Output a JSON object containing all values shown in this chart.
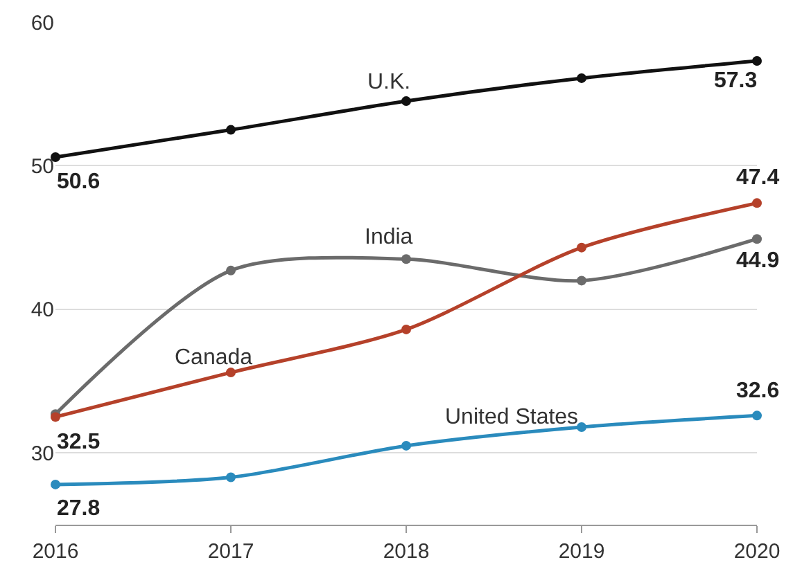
{
  "chart_data": {
    "type": "line",
    "x": [
      2016,
      2017,
      2018,
      2019,
      2020
    ],
    "series": [
      {
        "name": "U.K.",
        "color": "#111111",
        "values": [
          50.6,
          52.5,
          54.5,
          56.1,
          57.3
        ],
        "value_labels": [
          "50.6",
          null,
          null,
          null,
          "57.3"
        ]
      },
      {
        "name": "India",
        "color": "#6b6b6b",
        "values": [
          32.7,
          42.7,
          43.5,
          42.0,
          44.9
        ],
        "value_labels": [
          null,
          null,
          null,
          null,
          "44.9"
        ]
      },
      {
        "name": "Canada",
        "color": "#b5412a",
        "values": [
          32.5,
          35.6,
          38.6,
          44.3,
          47.4
        ],
        "value_labels": [
          "32.5",
          null,
          null,
          null,
          "47.4"
        ]
      },
      {
        "name": "United States",
        "color": "#2a8bbd",
        "values": [
          27.8,
          28.3,
          30.5,
          31.8,
          32.6
        ],
        "value_labels": [
          "27.8",
          null,
          null,
          null,
          "32.6"
        ]
      }
    ],
    "xlim": [
      2016,
      2020
    ],
    "xticks": [
      2016,
      2017,
      2018,
      2019,
      2020
    ],
    "ylim": [
      25,
      60
    ],
    "yticks": [
      30,
      40,
      50,
      60
    ],
    "grid": "y",
    "marker": "circle",
    "line_style": "solid",
    "legend": false
  }
}
